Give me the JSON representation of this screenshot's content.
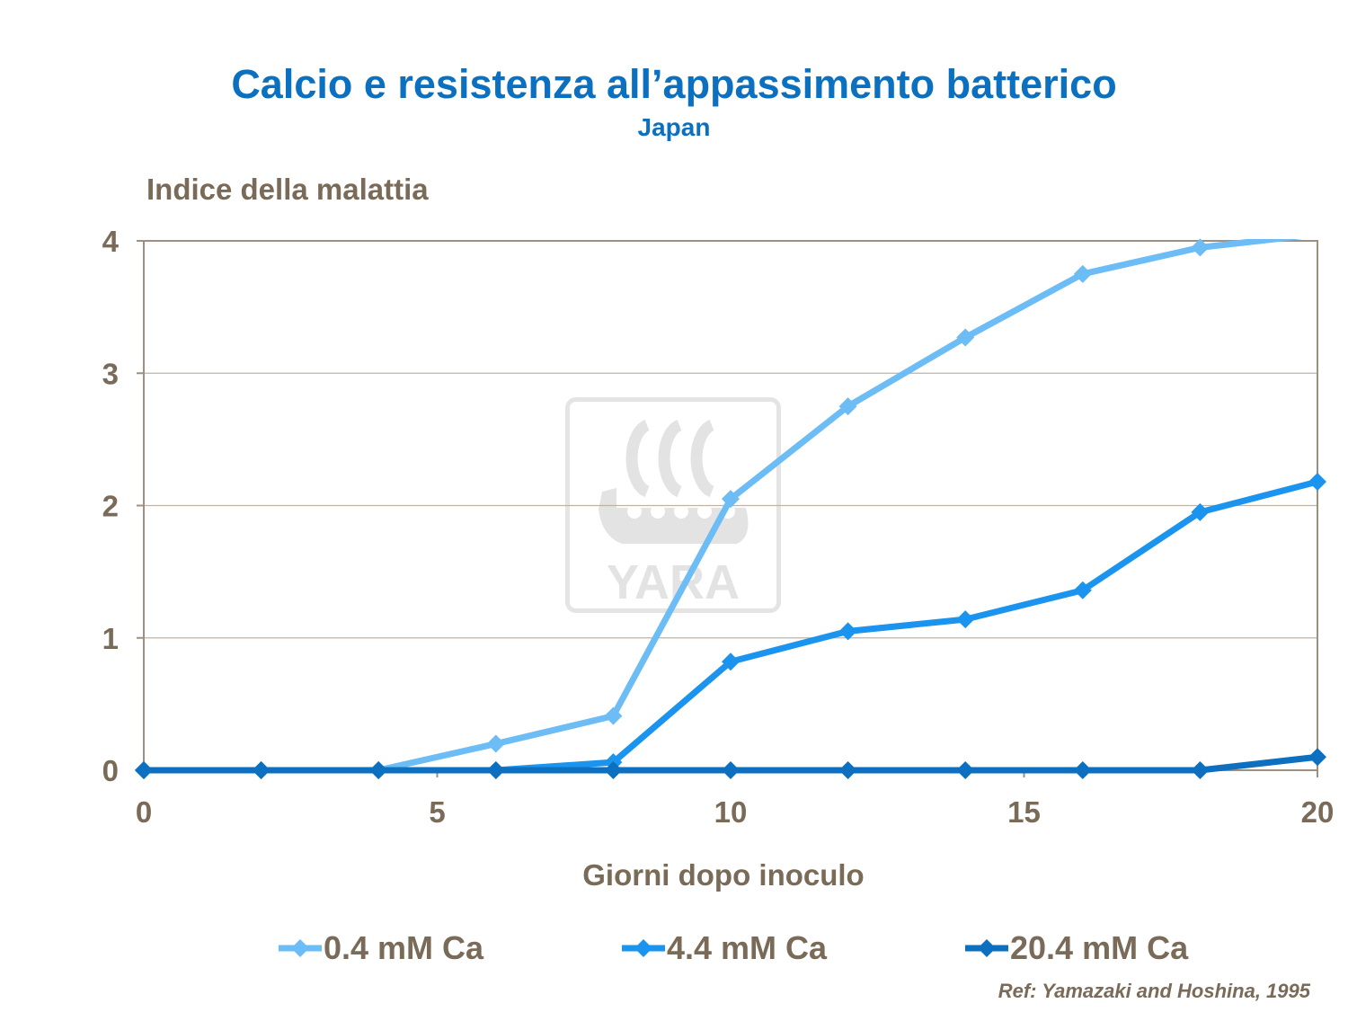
{
  "title": "Calcio e resistenza all’appassimento batterico",
  "subtitle": "Japan",
  "reference": "Ref: Yamazaki and Hoshina, 1995",
  "watermark_text": "YARA",
  "colors": {
    "series1": "#6cbcf5",
    "series2": "#1a94ee",
    "series3": "#0d6fbf",
    "title": "#0c70c0",
    "text": "#7a6a58",
    "grid": "#bdb3a8",
    "frame": "#9e9081"
  },
  "chart_data": {
    "type": "line",
    "title": "Calcio e resistenza all’appassimento batterico",
    "subtitle": "Japan",
    "xlabel": "Giorni dopo inoculo",
    "ylabel": "Indice della malattia",
    "xlim": [
      0,
      20
    ],
    "ylim": [
      0,
      4
    ],
    "xticks": [
      0,
      5,
      10,
      15,
      20
    ],
    "yticks": [
      0,
      1,
      2,
      3,
      4
    ],
    "grid": "horizontal",
    "legend_position": "bottom",
    "x": [
      0,
      2,
      4,
      6,
      8,
      10,
      12,
      14,
      16,
      18,
      20
    ],
    "series": [
      {
        "name": "0.4 mM Ca",
        "color": "#6cbcf5",
        "values": [
          0,
          0,
          0,
          0.2,
          0.41,
          2.05,
          2.75,
          3.27,
          3.75,
          3.95,
          4.05
        ]
      },
      {
        "name": "4.4 mM Ca",
        "color": "#1a94ee",
        "values": [
          0,
          0,
          0,
          0,
          0.06,
          0.82,
          1.05,
          1.14,
          1.36,
          1.95,
          2.18
        ]
      },
      {
        "name": "20.4 mM Ca",
        "color": "#0d6fbf",
        "values": [
          0,
          0,
          0,
          0,
          0,
          0,
          0,
          0,
          0,
          0,
          0.1
        ]
      }
    ]
  }
}
